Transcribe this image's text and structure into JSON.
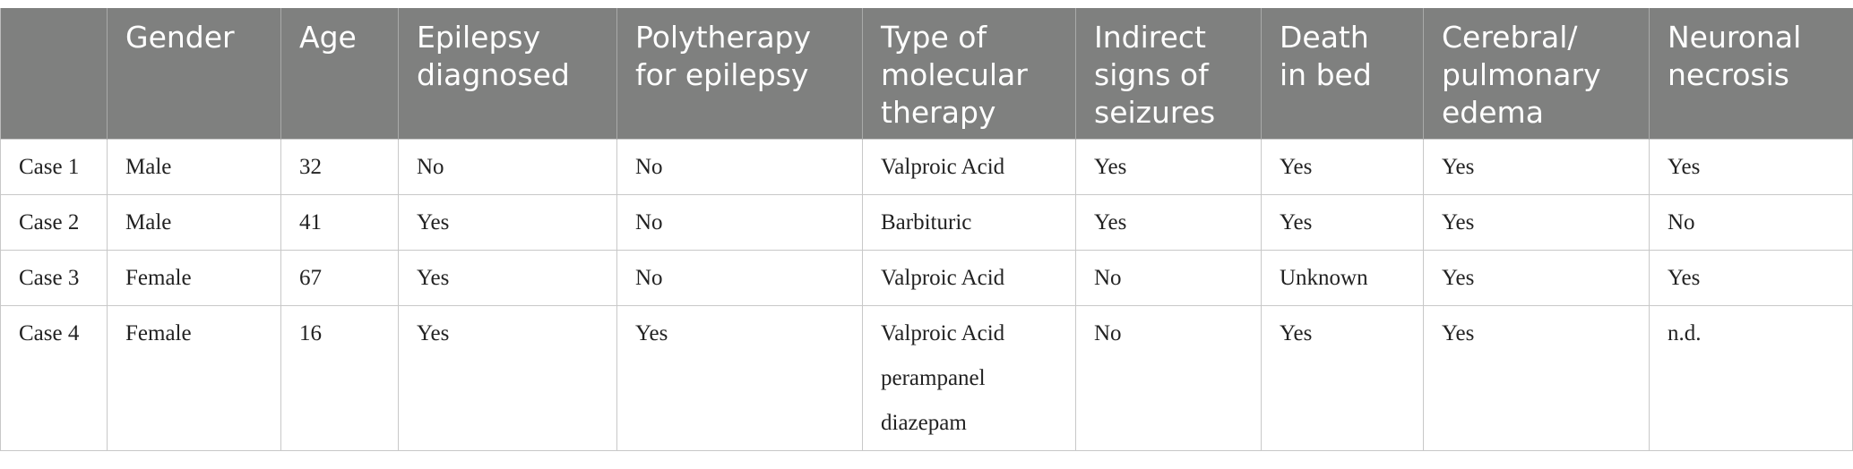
{
  "table": {
    "header": [
      "Gender",
      "Age",
      "Epilepsy diagnosed",
      "Polytherapy for epilepsy",
      "Type of molecular therapy",
      "Indirect signs of seizures",
      "Death in bed",
      "Cerebral/pulmonary edema",
      "Neuronal necrosis"
    ],
    "rows": [
      [
        "Case 1",
        "Male",
        "32",
        "No",
        "No",
        "Valproic Acid",
        "Yes",
        "Yes",
        "Yes",
        "Yes"
      ],
      [
        "Case 2",
        "Male",
        "41",
        "Yes",
        "No",
        "Barbituric",
        "Yes",
        "Yes",
        "Yes",
        "No"
      ],
      [
        "Case 3",
        "Female",
        "67",
        "Yes",
        "No",
        "Valproic Acid",
        "No",
        "Unknown",
        "Yes",
        "Yes"
      ],
      [
        "Case 4",
        "Female",
        "16",
        "Yes",
        "Yes",
        [
          "Valproic Acid",
          "perampanel",
          "diazepam"
        ],
        "No",
        "Yes",
        "Yes",
        "n.d."
      ]
    ]
  }
}
